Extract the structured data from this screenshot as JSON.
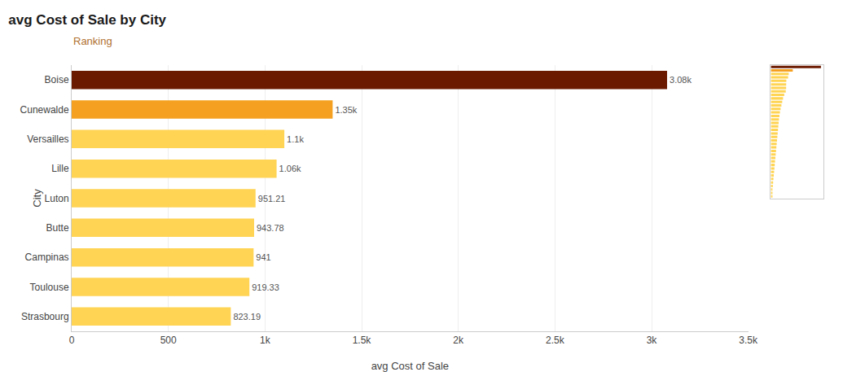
{
  "chart_data": [
    {
      "type": "bar",
      "title": "avg Cost of Sale by City",
      "subtitle": "Ranking",
      "x_label": "avg Cost of Sale",
      "y_label": "City",
      "orientation": "horizontal",
      "categories": [
        "Strasbourg",
        "Toulouse",
        "Campinas",
        "Butte",
        "Luton",
        "Lille",
        "Versailles",
        "Cunewalde",
        "Boise"
      ],
      "values": [
        823.19,
        919.33,
        941.0,
        943.78,
        951.21,
        1060.0,
        1100.0,
        1350.0,
        3080.0
      ],
      "value_labels": [
        "823.19",
        "919.33",
        "941",
        "943.78",
        "951.21",
        "1.06k",
        "1.1k",
        "1.35k",
        "3.08k"
      ],
      "data_labels": true,
      "colors": [
        "#FFD454",
        "#FFD454",
        "#FFD454",
        "#FFD454",
        "#FFD454",
        "#FFD454",
        "#FFD454",
        "#F5A020",
        "#6B1A00"
      ],
      "xlim": [
        0,
        3500
      ],
      "xticks": [
        0,
        500,
        {
          "value": 1000,
          "label": "1k"
        },
        {
          "value": 1500,
          "label": "1.5k"
        },
        {
          "value": 2000,
          "label": "2k"
        },
        {
          "value": 2500,
          "label": "2.5k"
        },
        {
          "value": 3000,
          "label": "3k"
        },
        {
          "value": 3500,
          "label": "3.5k"
        }
      ],
      "grid": true
    },
    {
      "type": "bar",
      "orientation": "horizontal",
      "categories": [
        null,
        null,
        null,
        null,
        null,
        null,
        null,
        null,
        null,
        null,
        null,
        null,
        null,
        null,
        null,
        null,
        null,
        null,
        null,
        null,
        null,
        null,
        null,
        null,
        null,
        null,
        null,
        null,
        null,
        null,
        null,
        null,
        null,
        null,
        null,
        null,
        null,
        null
      ],
      "values": [
        3080,
        1350,
        1100,
        1060,
        951,
        943,
        941,
        919,
        823,
        750,
        700,
        650,
        600,
        560,
        530,
        500,
        480,
        460,
        440,
        420,
        400,
        380,
        360,
        340,
        320,
        300,
        280,
        260,
        240,
        220,
        200,
        180,
        160,
        140,
        120,
        100,
        80,
        60
      ],
      "colors": [
        "#6B1A00",
        "#F5A020",
        "#FFD454",
        "#FFD454",
        "#FFD454",
        "#FFD454",
        "#FFD454",
        "#FFD454",
        "#FFD454",
        "#FFD454",
        "#FFD454",
        "#FFD454",
        "#FFD454",
        "#FFD454",
        "#FFD454",
        "#FFD454",
        "#FFD454",
        "#FFD454",
        "#FFD454",
        "#FFD454",
        "#FFD454",
        "#FFD454",
        "#FFD454",
        "#FFD454",
        "#FFD454",
        "#FFD454",
        "#FFD454",
        "#FFD454",
        "#FFD454",
        "#FFD454",
        "#FFD454",
        "#FFD454",
        "#FFD454",
        "#FFD454",
        "#FFD454",
        "#FFD454",
        "#FFD454",
        "#FFD454"
      ],
      "xlim": [
        0,
        3234
      ],
      "tick_labels": false,
      "grid": false
    }
  ]
}
